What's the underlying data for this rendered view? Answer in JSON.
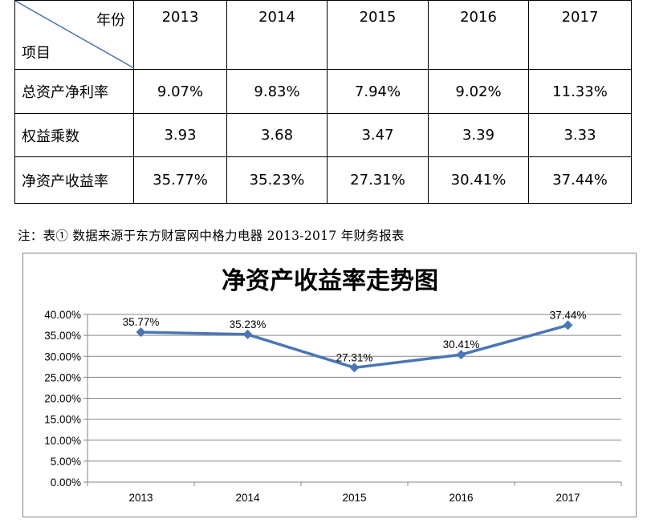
{
  "table": {
    "corner_year": "年份",
    "corner_item": "项目",
    "years": [
      "2013",
      "2014",
      "2015",
      "2016",
      "2017"
    ],
    "rows": [
      {
        "label": "总资产净利率",
        "values": [
          "9.07%",
          "9.83%",
          "7.94%",
          "9.02%",
          "11.33%"
        ]
      },
      {
        "label": "权益乘数",
        "values": [
          "3.93",
          "3.68",
          "3.47",
          "3.39",
          "3.33"
        ]
      },
      {
        "label": "净资产收益率",
        "values": [
          "35.77%",
          "35.23%",
          "27.31%",
          "30.41%",
          "37.44%"
        ]
      }
    ]
  },
  "note": "注：表①  数据来源于东方财富网中格力电器 2013-2017 年财务报表",
  "chart_data": {
    "type": "line",
    "title": "净资产收益率走势图",
    "categories": [
      "2013",
      "2014",
      "2015",
      "2016",
      "2017"
    ],
    "series": [
      {
        "values": [
          35.77,
          35.23,
          27.31,
          30.41,
          37.44
        ],
        "labels": [
          "35.77%",
          "35.23%",
          "27.31%",
          "30.41%",
          "37.44%"
        ]
      }
    ],
    "ylim": [
      0,
      40
    ],
    "yticks": [
      "0.00%",
      "5.00%",
      "10.00%",
      "15.00%",
      "20.00%",
      "25.00%",
      "30.00%",
      "35.00%",
      "40.00%"
    ],
    "grid": true,
    "legend": "none",
    "line_color": "#4a76b5"
  }
}
